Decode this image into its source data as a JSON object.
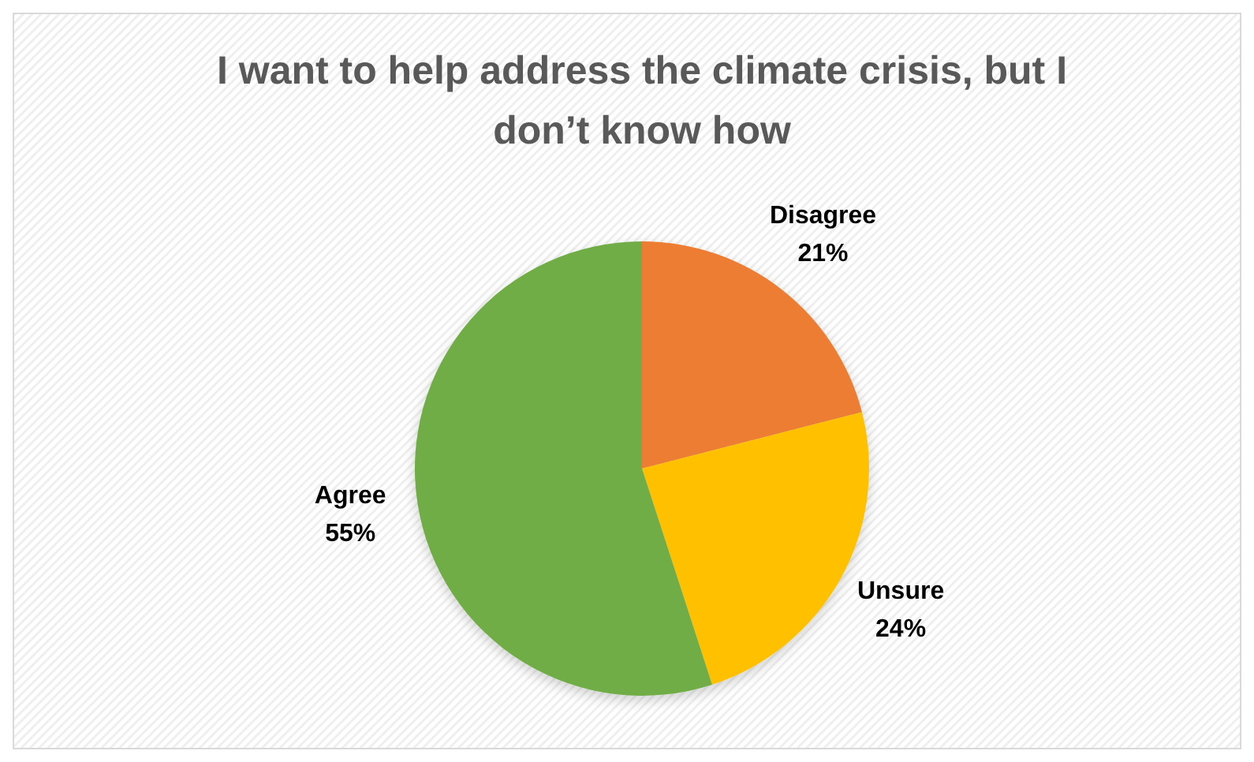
{
  "chart_data": {
    "type": "pie",
    "title": "I want to help address the climate crisis, but I don’t know how",
    "categories": [
      "Disagree",
      "Unsure",
      "Agree"
    ],
    "values": [
      21,
      24,
      55
    ],
    "colors": [
      "#ed7d31",
      "#ffc000",
      "#70ad47"
    ],
    "value_labels": [
      "21%",
      "24%",
      "55%"
    ]
  }
}
